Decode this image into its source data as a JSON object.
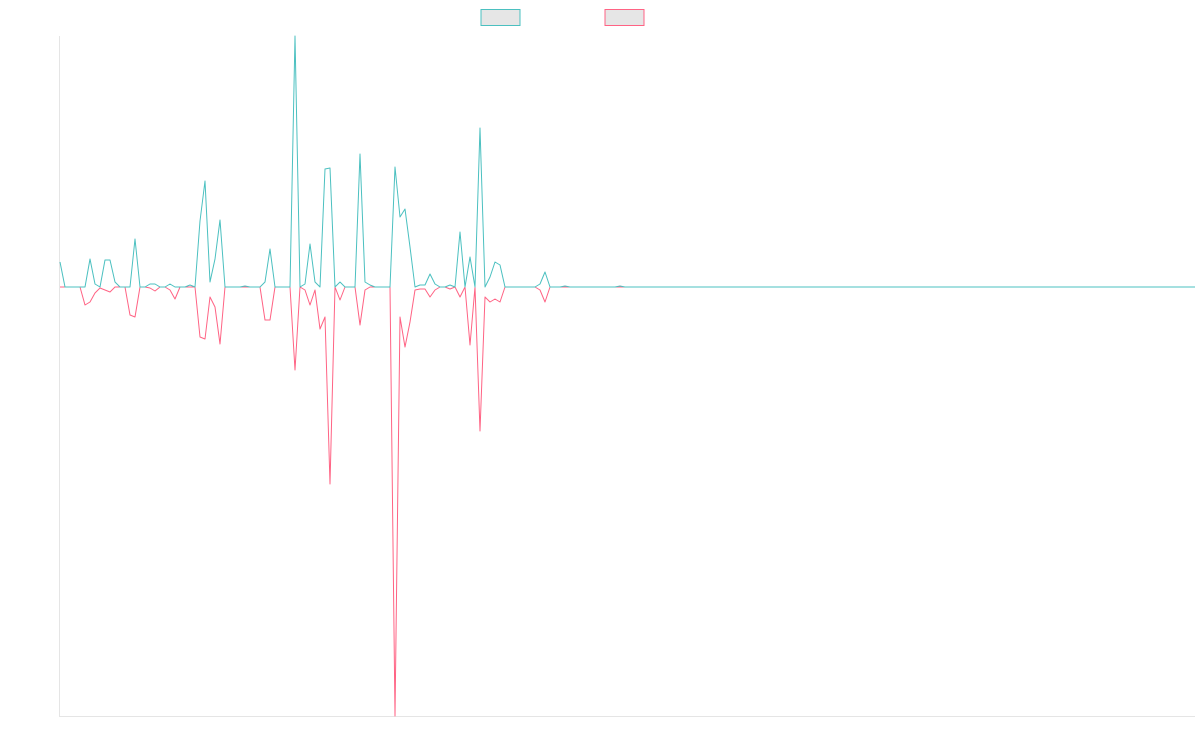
{
  "chart_data": {
    "type": "line",
    "ylim": [
      -429,
      251
    ],
    "series": [
      {
        "color": "#4bc0c0",
        "values": [
          25,
          0,
          0,
          0,
          0,
          0,
          28,
          3,
          0,
          27,
          27,
          5,
          0,
          0,
          0,
          48,
          0,
          0,
          3,
          3,
          0,
          0,
          3,
          0,
          0,
          0,
          2,
          0,
          66,
          106,
          5,
          28,
          67,
          0,
          0,
          0,
          0,
          1,
          0,
          0,
          0,
          5,
          38,
          0,
          0,
          0,
          0,
          251,
          0,
          3,
          43,
          5,
          0,
          118,
          119,
          0,
          5,
          0,
          0,
          0,
          133,
          5,
          2,
          0,
          0,
          0,
          0,
          120,
          70,
          78,
          40,
          0,
          2,
          2,
          13,
          3,
          0,
          0,
          2,
          0,
          55,
          0,
          30,
          0,
          159,
          0,
          10,
          25,
          22,
          0,
          0,
          0,
          0,
          0,
          0,
          0,
          3,
          15,
          0,
          0,
          0,
          1,
          0,
          0,
          0,
          0,
          0,
          0,
          0,
          0,
          0,
          0,
          1,
          0,
          0,
          0,
          0,
          0,
          0,
          0,
          0,
          0,
          0,
          0,
          0,
          0,
          0,
          0,
          0,
          0,
          0,
          0,
          0,
          0,
          0,
          0,
          0,
          0,
          0,
          0,
          0,
          0,
          0,
          0,
          0,
          0,
          0,
          0,
          0,
          0,
          0,
          0,
          0,
          0,
          0,
          0,
          0,
          0,
          0,
          0,
          0,
          0,
          0,
          0,
          0,
          0,
          0,
          0,
          0,
          0,
          0,
          0,
          0,
          0,
          0,
          0,
          0,
          0,
          0,
          0,
          0,
          0,
          0,
          0,
          0,
          0,
          0,
          0,
          0,
          0,
          0,
          0,
          0,
          0,
          0,
          0,
          0,
          0,
          0,
          0,
          0,
          0,
          0,
          0,
          0,
          0,
          0,
          0,
          0,
          0,
          0,
          0,
          0,
          0,
          0,
          0,
          0,
          0,
          0,
          0,
          0,
          0,
          0,
          0,
          0,
          0,
          0,
          0
        ]
      },
      {
        "color": "#ff6384",
        "values": [
          0,
          0,
          0,
          0,
          0,
          -18,
          -15,
          -6,
          -1,
          -3,
          -5,
          0,
          0,
          0,
          -28,
          -30,
          0,
          0,
          -1,
          -4,
          0,
          0,
          -3,
          -12,
          0,
          0,
          0,
          0,
          -50,
          -52,
          -10,
          -20,
          -57,
          0,
          0,
          0,
          0,
          0,
          0,
          0,
          0,
          -33,
          -33,
          0,
          0,
          0,
          0,
          -83,
          0,
          -3,
          -18,
          -3,
          -42,
          -30,
          -197,
          0,
          -13,
          0,
          0,
          0,
          -38,
          -3,
          0,
          0,
          0,
          0,
          0,
          -429,
          -30,
          -60,
          -35,
          -3,
          -2,
          -2,
          -10,
          -3,
          0,
          0,
          -2,
          0,
          -10,
          0,
          -58,
          0,
          -144,
          -10,
          -15,
          -12,
          -15,
          0,
          0,
          0,
          0,
          0,
          0,
          0,
          -3,
          -15,
          0,
          0,
          0,
          0,
          0,
          0,
          0,
          0,
          0,
          0,
          0,
          0,
          0,
          0,
          0,
          0,
          0,
          0,
          0,
          0,
          0,
          0,
          0,
          0,
          0,
          0,
          0,
          0,
          0,
          0,
          0,
          0,
          0,
          0,
          0,
          0,
          0,
          0,
          0,
          0,
          0,
          0,
          0,
          0,
          0,
          0,
          0,
          0,
          0,
          0,
          0,
          0,
          0,
          0,
          0,
          0,
          0,
          0,
          0,
          0,
          0,
          0,
          0,
          0,
          0,
          0,
          0,
          0,
          0,
          0,
          0,
          0,
          0,
          0,
          0,
          0,
          0,
          0,
          0,
          0,
          0,
          0,
          0,
          0,
          0,
          0,
          0,
          0,
          0,
          0,
          0,
          0,
          0,
          0,
          0,
          0,
          0,
          0,
          0,
          0,
          0,
          0,
          0,
          0,
          0,
          0,
          0,
          0,
          0,
          0,
          0,
          0,
          0,
          0,
          0,
          0,
          0,
          0,
          0,
          0,
          0,
          0,
          0,
          0,
          0,
          0,
          0,
          0,
          0,
          0
        ]
      }
    ]
  }
}
